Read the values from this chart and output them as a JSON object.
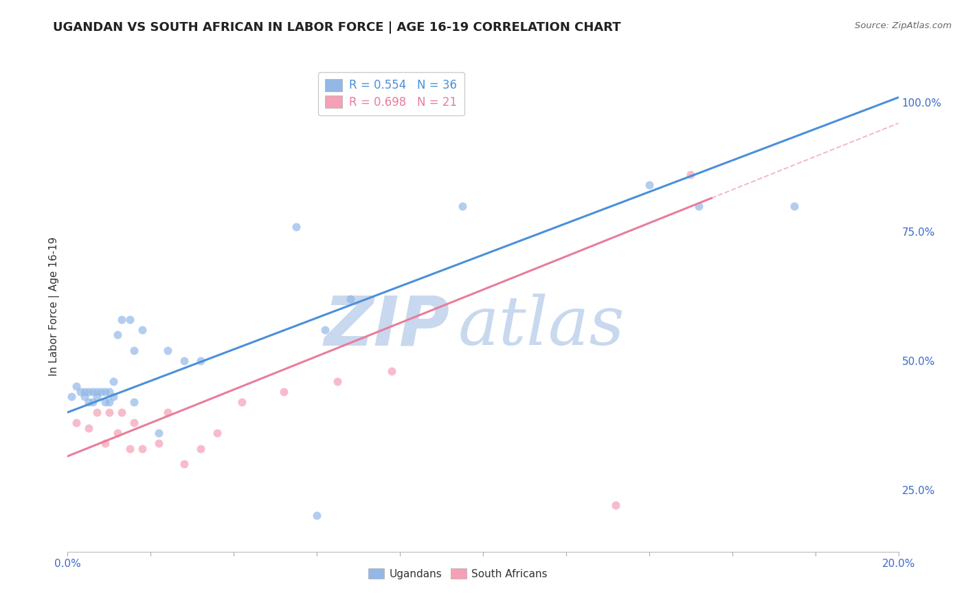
{
  "title": "UGANDAN VS SOUTH AFRICAN IN LABOR FORCE | AGE 16-19 CORRELATION CHART",
  "source": "Source: ZipAtlas.com",
  "ylabel": "In Labor Force | Age 16-19",
  "xlim": [
    0.0,
    0.2
  ],
  "ylim": [
    0.13,
    1.08
  ],
  "xticks": [
    0.0,
    0.02,
    0.04,
    0.06,
    0.08,
    0.1,
    0.12,
    0.14,
    0.16,
    0.18,
    0.2
  ],
  "xtick_labels": [
    "0.0%",
    "",
    "",
    "",
    "",
    "",
    "",
    "",
    "",
    "",
    "20.0%"
  ],
  "ytick_right_vals": [
    0.25,
    0.5,
    0.75,
    1.0
  ],
  "ytick_right_labels": [
    "25.0%",
    "50.0%",
    "75.0%",
    "100.0%"
  ],
  "grid_color": "#cccccc",
  "background_color": "#ffffff",
  "watermark_zip": "ZIP",
  "watermark_atlas": "atlas",
  "watermark_color": "#c8d8ee",
  "ugandan_color": "#93b8e8",
  "southafrican_color": "#f5a0b5",
  "ugandan_line_color": "#4a90d9",
  "southafrican_line_color": "#e87d9a",
  "legend_label_blue": "R = 0.554   N = 36",
  "legend_label_pink": "R = 0.698   N = 21",
  "ugandan_scatter_x": [
    0.001,
    0.002,
    0.003,
    0.004,
    0.004,
    0.005,
    0.005,
    0.006,
    0.006,
    0.007,
    0.007,
    0.008,
    0.009,
    0.009,
    0.01,
    0.01,
    0.011,
    0.011,
    0.012,
    0.013,
    0.015,
    0.016,
    0.016,
    0.018,
    0.022,
    0.024,
    0.028,
    0.032,
    0.055,
    0.06,
    0.062,
    0.068,
    0.095,
    0.14,
    0.152,
    0.175
  ],
  "ugandan_scatter_y": [
    0.43,
    0.45,
    0.44,
    0.43,
    0.44,
    0.42,
    0.44,
    0.42,
    0.44,
    0.43,
    0.44,
    0.44,
    0.42,
    0.44,
    0.42,
    0.44,
    0.43,
    0.46,
    0.55,
    0.58,
    0.58,
    0.42,
    0.52,
    0.56,
    0.36,
    0.52,
    0.5,
    0.5,
    0.76,
    0.2,
    0.56,
    0.62,
    0.8,
    0.84,
    0.8,
    0.8
  ],
  "southafrican_scatter_x": [
    0.002,
    0.005,
    0.007,
    0.009,
    0.01,
    0.012,
    0.013,
    0.015,
    0.016,
    0.018,
    0.022,
    0.024,
    0.028,
    0.032,
    0.036,
    0.042,
    0.052,
    0.065,
    0.078,
    0.132,
    0.15
  ],
  "southafrican_scatter_y": [
    0.38,
    0.37,
    0.4,
    0.34,
    0.4,
    0.36,
    0.4,
    0.33,
    0.38,
    0.33,
    0.34,
    0.4,
    0.3,
    0.33,
    0.36,
    0.42,
    0.44,
    0.46,
    0.48,
    0.22,
    0.86
  ],
  "ugandan_line_x0": 0.0,
  "ugandan_line_x1": 0.2,
  "ugandan_line_y0": 0.4,
  "ugandan_line_y1": 1.01,
  "southafrican_line_x0": 0.0,
  "southafrican_line_x1": 0.155,
  "southafrican_line_y0": 0.315,
  "southafrican_line_y1": 0.815,
  "dashed_line_x0": 0.155,
  "dashed_line_x1": 0.2,
  "dashed_line_y0": 0.815,
  "dashed_line_y1": 0.96,
  "title_fontsize": 13,
  "axis_label_fontsize": 11,
  "tick_fontsize": 11,
  "scatter_size": 75,
  "scatter_alpha": 0.7,
  "line_width": 2.2
}
